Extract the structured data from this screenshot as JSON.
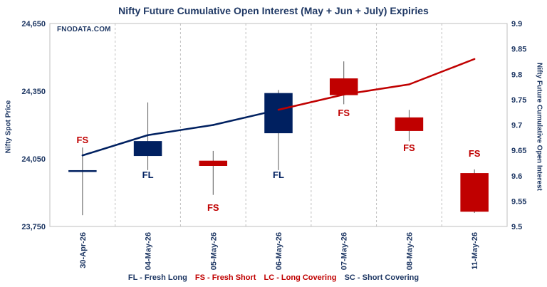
{
  "chart_data": {
    "type": "candlestick-with-line",
    "title": "Nifty Future Cumulative Open Interest (May + Jun + July) Expiries",
    "watermark": "FNODATA.COM",
    "ylabel_left": "Nifty Spot Price",
    "ylabel_right": "Nifty Future Cumulative Open Interest",
    "ylim_left": [
      23750,
      24650
    ],
    "yticks_left": [
      "23,750",
      "24,050",
      "24,350",
      "24,650"
    ],
    "ylim_right": [
      9.5,
      9.9
    ],
    "yticks_right": [
      "9.5",
      "9.55",
      "9.6",
      "9.65",
      "9.7",
      "9.75",
      "9.8",
      "9.85",
      "9.9"
    ],
    "categories": [
      "30-Apr-26",
      "04-May-26",
      "05-May-26",
      "06-May-26",
      "07-May-26",
      "08-May-26",
      "11-May-26"
    ],
    "ohlc": [
      {
        "open": 23998,
        "high": 24100,
        "low": 23800,
        "close": 23998
      },
      {
        "open": 24064,
        "high": 24300,
        "low": 24000,
        "close": 24127
      },
      {
        "open": 24040,
        "high": 24085,
        "low": 23890,
        "close": 24020
      },
      {
        "open": 24165,
        "high": 24355,
        "low": 24000,
        "close": 24340
      },
      {
        "open": 24405,
        "high": 24482,
        "low": 24292,
        "close": 24334
      },
      {
        "open": 24232,
        "high": 24267,
        "low": 24128,
        "close": 24175
      },
      {
        "open": 23985,
        "high": 24003,
        "low": 23810,
        "close": 23817
      }
    ],
    "oi_series": {
      "name": "Cumulative Open Interest",
      "values": [
        9.64,
        9.68,
        9.7,
        9.73,
        9.76,
        9.78,
        9.83
      ]
    },
    "labels": [
      {
        "text": "FS",
        "index": 0,
        "value": 24120
      },
      {
        "text": "FL",
        "index": 1,
        "value": 23965
      },
      {
        "text": "FS",
        "index": 2,
        "value": 23820
      },
      {
        "text": "FL",
        "index": 3,
        "value": 23965
      },
      {
        "text": "FS",
        "index": 4,
        "value": 24240
      },
      {
        "text": "FS",
        "index": 5,
        "value": 24085
      },
      {
        "text": "FS",
        "index": 6,
        "value": 24060
      }
    ],
    "colors": {
      "long": "#002060",
      "short": "#c00000",
      "axis_text": "#1f3864",
      "grid": "#bfbfbf"
    }
  },
  "legend": {
    "fl": "FL - Fresh Long",
    "fs": "FS - Fresh Short",
    "lc": "LC - Long Covering",
    "sc": "SC - Short Covering"
  }
}
